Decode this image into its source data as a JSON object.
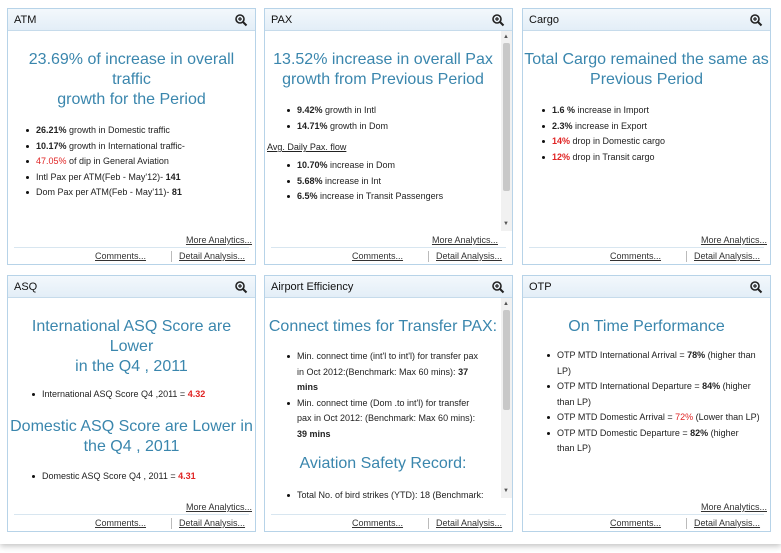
{
  "common": {
    "more": "More Analytics...",
    "comments": "Comments...",
    "detail": "Detail Analysis..."
  },
  "atm": {
    "title": "ATM",
    "headline_l1": "23.69% of increase in overall traffic",
    "headline_l2": "growth for the Period",
    "items": [
      {
        "v": "26.21%",
        "t": " growth in Domestic traffic"
      },
      {
        "v": "10.17%",
        "t": " growth in International traffic-"
      },
      {
        "v": "47.05%",
        "t": " of dip in General Aviation"
      },
      {
        "t": "Intl Pax per ATM(Feb - May'12)- ",
        "v": "141"
      },
      {
        "t": "Dom Pax per ATM(Feb - May'11)- ",
        "v": "81"
      }
    ]
  },
  "pax": {
    "title": "PAX",
    "headline_l1": "13.52% increase in overall Pax",
    "headline_l2": "growth from Previous Period",
    "items": [
      {
        "v": "9.42%",
        "t": " growth in Intl"
      },
      {
        "v": "14.71%",
        "t": " growth in Dom"
      }
    ],
    "sub": "Avg. Daily Pax. flow",
    "items2": [
      {
        "v": "10.70%",
        "t": " increase in Dom"
      },
      {
        "v": "5.68%",
        "t": " increase in Int"
      },
      {
        "v": "6.5%",
        "t": " increase in Transit Passengers"
      }
    ]
  },
  "cargo": {
    "title": "Cargo",
    "headline_l1": "Total Cargo remained the same as",
    "headline_l2": "Previous Period",
    "items": [
      {
        "v": "1.6 %",
        "t": " increase in Import"
      },
      {
        "v": "2.3%",
        "t": " increase in Export"
      },
      {
        "v": "14%",
        "t": " drop in Domestic cargo"
      },
      {
        "v": "12%",
        "t": " drop in Transit cargo"
      }
    ]
  },
  "asq": {
    "title": "ASQ",
    "h1_l1": "International ASQ Score are Lower",
    "h1_l2": "in the Q4 , 2011",
    "i1_t": "International ASQ Score Q4 ,2011 = ",
    "i1_v": "4.32",
    "h2_l1": "Domestic ASQ Score are Lower in",
    "h2_l2": "the Q4 , 2011",
    "i2_t": "Domestic ASQ Score Q4 , 2011 = ",
    "i2_v": "4.31"
  },
  "eff": {
    "title": "Airport Efficiency",
    "headline": "Connect times for Transfer PAX:",
    "b1_l1": "Min. connect time (int'l to int'l) for transfer pax",
    "b1_l2": "in Oct 2012:(Benchmark: Max 60 mins): ",
    "b1_v": "37",
    "b1_l3": "mins",
    "b2_l1": "Min. connect time (Dom .to int'l) for transfer",
    "b2_l2": "pax in Oct 2012: (Benchmark: Max 60 mins):",
    "b2_v": "39 mins",
    "headline2": "Aviation Safety Record:",
    "b3": "Total No. of bird strikes (YTD): 18 (Benchmark:"
  },
  "otp": {
    "title": "OTP",
    "headline": "On Time Performance",
    "b1_t": "OTP MTD International Arrival = ",
    "b1_v": "78%",
    "b1_s": " (higher than",
    "b1_l2": "LP)",
    "b2_t": "OTP MTD International Departure = ",
    "b2_v": "84%",
    "b2_s": " (higher",
    "b2_l2": "than LP)",
    "b3_t": "OTP MTD Domestic Arrival = ",
    "b3_v": "72%",
    "b3_s": " (Lower than LP)",
    "b4_t": "OTP MTD Domestic Departure = ",
    "b4_v": "82%",
    "b4_s": " (higher",
    "b4_l2": "than LP)"
  },
  "colors": {
    "accent": "#3a86ad",
    "red": "#e02424",
    "border": "#b7d3e8"
  }
}
